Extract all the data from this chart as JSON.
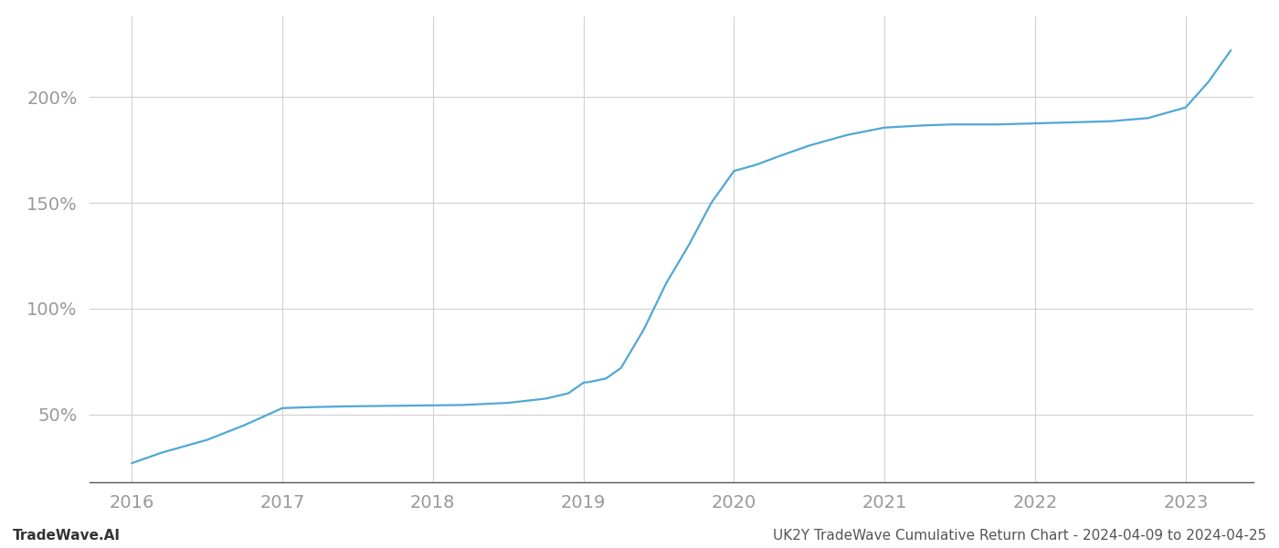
{
  "title": "",
  "footer_left": "TradeWave.AI",
  "footer_right": "UK2Y TradeWave Cumulative Return Chart - 2024-04-09 to 2024-04-25",
  "line_color": "#4fa8d5",
  "background_color": "#ffffff",
  "grid_color": "#d0d0d0",
  "x_values": [
    2016.0,
    2016.2,
    2016.5,
    2016.75,
    2017.0,
    2017.2,
    2017.4,
    2017.6,
    2017.85,
    2018.0,
    2018.2,
    2018.5,
    2018.75,
    2018.9,
    2019.0,
    2019.05,
    2019.15,
    2019.25,
    2019.4,
    2019.55,
    2019.7,
    2019.85,
    2019.95,
    2020.0,
    2020.15,
    2020.3,
    2020.5,
    2020.75,
    2021.0,
    2021.25,
    2021.45,
    2021.6,
    2021.75,
    2022.0,
    2022.25,
    2022.5,
    2022.75,
    2023.0,
    2023.15,
    2023.3
  ],
  "y_values": [
    27,
    32,
    38,
    45,
    53,
    53.5,
    53.8,
    54.0,
    54.2,
    54.3,
    54.5,
    55.5,
    57.5,
    60.0,
    65.0,
    65.5,
    67.0,
    72.0,
    90.0,
    112.0,
    130.0,
    150.0,
    160.0,
    165.0,
    168.0,
    172.0,
    177.0,
    182.0,
    185.5,
    186.5,
    187.0,
    187.0,
    187.0,
    187.5,
    188.0,
    188.5,
    190.0,
    195.0,
    207.0,
    222.0
  ],
  "yticks": [
    50,
    100,
    150,
    200
  ],
  "ytick_labels": [
    "50%",
    "100%",
    "150%",
    "200%"
  ],
  "xticks": [
    2016,
    2017,
    2018,
    2019,
    2020,
    2021,
    2022,
    2023
  ],
  "xlim": [
    2015.72,
    2023.45
  ],
  "ylim": [
    18,
    238
  ],
  "tick_color": "#999999",
  "spine_color": "#555555",
  "line_width": 1.6,
  "tick_fontsize": 14,
  "footer_fontsize": 11
}
